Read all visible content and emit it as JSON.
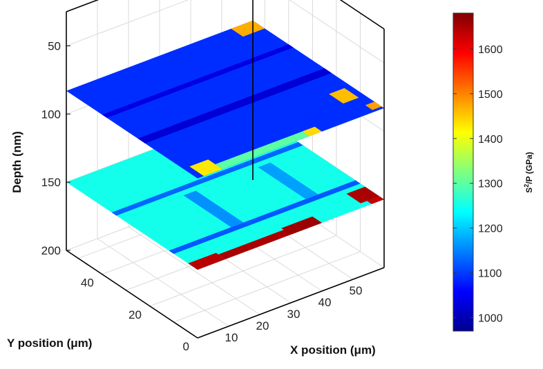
{
  "chart_data": {
    "type": "heatmap",
    "subtype": "3d-stacked-slices",
    "colormap": "jet",
    "grid": true,
    "colorbar_position": "right",
    "axes": {
      "x": {
        "label": "X position (μm)",
        "range": [
          0,
          60
        ],
        "ticks": [
          10,
          20,
          30,
          40,
          50
        ]
      },
      "y": {
        "label": "Y position (μm)",
        "range": [
          0,
          55
        ],
        "ticks": [
          0,
          20,
          40
        ]
      },
      "z": {
        "label": "Depth (nm)",
        "range": [
          25,
          200
        ],
        "reversed": true,
        "ticks": [
          50,
          100,
          150,
          200
        ]
      }
    },
    "colorbar": {
      "label_main": "S",
      "label_sup": "2",
      "label_rest": "/P (GPa)",
      "range": [
        970,
        1680
      ],
      "ticks": [
        1000,
        1100,
        1200,
        1300,
        1400,
        1500,
        1600
      ]
    },
    "slices": [
      {
        "depth": 83,
        "base_value": 1090,
        "features": [
          {
            "x": [
              53,
              60
            ],
            "y": [
              50,
              55
            ],
            "value": 1470
          },
          {
            "x": [
              2,
              8
            ],
            "y": [
              0,
              6
            ],
            "value": 1430
          },
          {
            "x": [
              53,
              58
            ],
            "y": [
              8,
              14
            ],
            "value": 1460
          },
          {
            "x": [
              57,
              60
            ],
            "y": [
              1,
              4
            ],
            "value": 1480
          },
          {
            "x": [
              8,
              38
            ],
            "y": [
              0,
              3
            ],
            "value": 1300
          },
          {
            "x": [
              36,
              40
            ],
            "y": [
              0,
              3
            ],
            "value": 1440
          },
          {
            "x": [
              0,
              60
            ],
            "y": [
              22,
              25
            ],
            "value": 1030
          },
          {
            "x": [
              0,
              60
            ],
            "y": [
              38,
              40
            ],
            "value": 1040
          }
        ]
      },
      {
        "depth": 150,
        "base_value": 1250,
        "features": [
          {
            "x": [
              0,
              9
            ],
            "y": [
              0,
              4
            ],
            "value": 1640
          },
          {
            "x": [
              9,
              40
            ],
            "y": [
              0,
              3
            ],
            "value": 1650
          },
          {
            "x": [
              30,
              40
            ],
            "y": [
              0,
              4
            ],
            "value": 1660
          },
          {
            "x": [
              55,
              60
            ],
            "y": [
              48,
              54
            ],
            "value": 1640
          },
          {
            "x": [
              54,
              60
            ],
            "y": [
              2,
              8
            ],
            "value": 1650
          },
          {
            "x": [
              56,
              60
            ],
            "y": [
              0,
              2
            ],
            "value": 1630
          },
          {
            "x": [
              0,
              60
            ],
            "y": [
              10,
              12
            ],
            "value": 1120
          },
          {
            "x": [
              0,
              60
            ],
            "y": [
              34,
              36
            ],
            "value": 1130
          },
          {
            "x": [
              20,
              24
            ],
            "y": [
              12,
              32
            ],
            "value": 1160
          },
          {
            "x": [
              44,
              48
            ],
            "y": [
              12,
              32
            ],
            "value": 1170
          }
        ]
      }
    ]
  }
}
